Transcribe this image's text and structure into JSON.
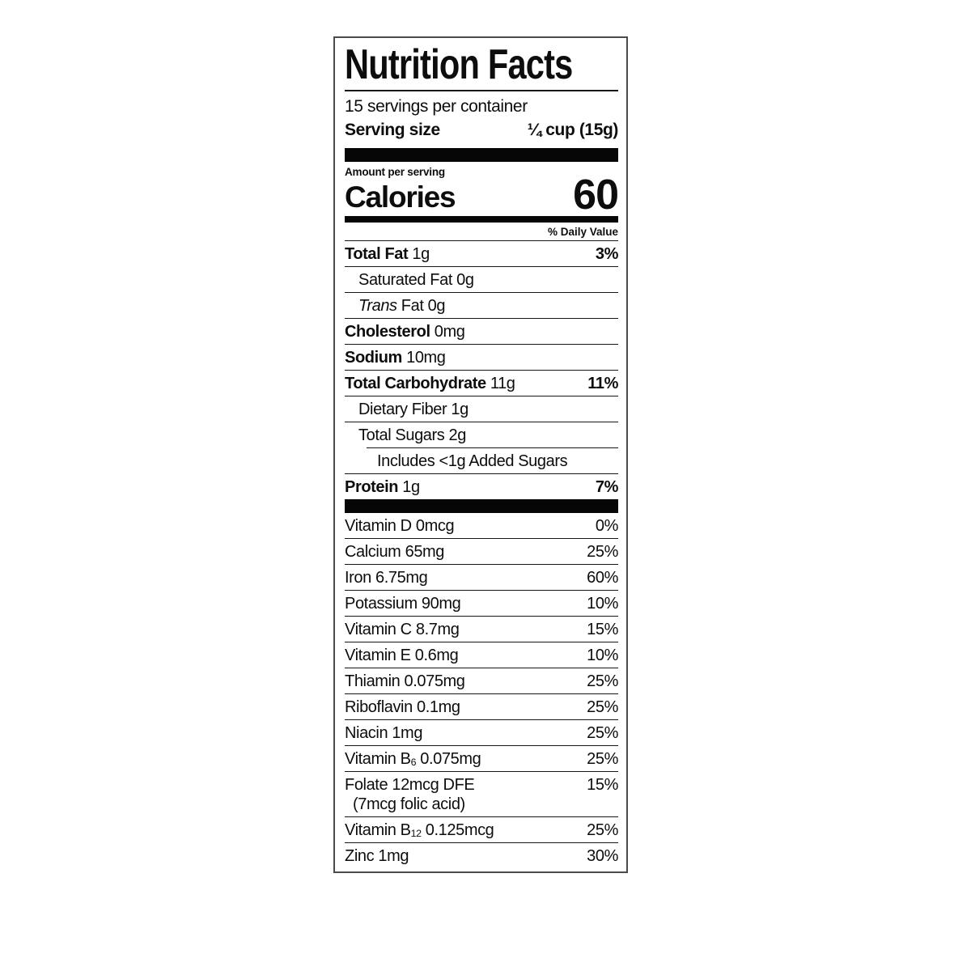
{
  "label": {
    "title": "Nutrition Facts",
    "servings_per_container": "15 servings per container",
    "serving_size_label": "Serving size",
    "serving_size_value": "¼ cup (15g)",
    "amount_per_serving": "Amount per serving",
    "calories_label": "Calories",
    "calories_value": "60",
    "daily_value_header": "% Daily Value",
    "nutrients": [
      {
        "b": "Total Fat",
        "t": " 1g",
        "dv": "3%"
      },
      {
        "t": "Saturated Fat 0g"
      },
      {
        "i": "Trans",
        "t": " Fat 0g"
      },
      {
        "b": "Cholesterol",
        "t": " 0mg"
      },
      {
        "b": "Sodium",
        "t": " 10mg"
      },
      {
        "b": "Total Carbohydrate",
        "t": " 11g",
        "dv": "11%"
      },
      {
        "t": "Dietary Fiber 1g"
      },
      {
        "t": "Total Sugars 2g"
      },
      {
        "t": "Includes <1g Added Sugars"
      },
      {
        "b": "Protein",
        "t": " 1g",
        "dv": "7%"
      }
    ],
    "vitamins": [
      {
        "t": "Vitamin D 0mcg",
        "dv": "0%"
      },
      {
        "t": "Calcium 65mg",
        "dv": "25%"
      },
      {
        "t": "Iron 6.75mg",
        "dv": "60%"
      },
      {
        "t": "Potassium 90mg",
        "dv": "10%"
      },
      {
        "t": "Vitamin C 8.7mg",
        "dv": "15%"
      },
      {
        "t": "Vitamin E 0.6mg",
        "dv": "10%"
      },
      {
        "t": "Thiamin 0.075mg",
        "dv": "25%"
      },
      {
        "t": "Riboflavin 0.1mg",
        "dv": "25%"
      },
      {
        "t": "Niacin 1mg",
        "dv": "25%"
      },
      {
        "t": "Vitamin B",
        "sub": "6",
        "t2": " 0.075mg",
        "dv": "25%"
      },
      {
        "t": "Folate 12mcg DFE",
        "line2": "(7mcg folic acid)",
        "dv": "15%"
      },
      {
        "t": "Vitamin B",
        "sub": "12",
        "t2": " 0.125mcg",
        "dv": "25%"
      },
      {
        "t": "Zinc 1mg",
        "dv": "30%"
      }
    ],
    "colors": {
      "text": "#0d0d0d",
      "bar": "#060606",
      "border": "#4b4b4b",
      "background": "#ffffff"
    }
  }
}
